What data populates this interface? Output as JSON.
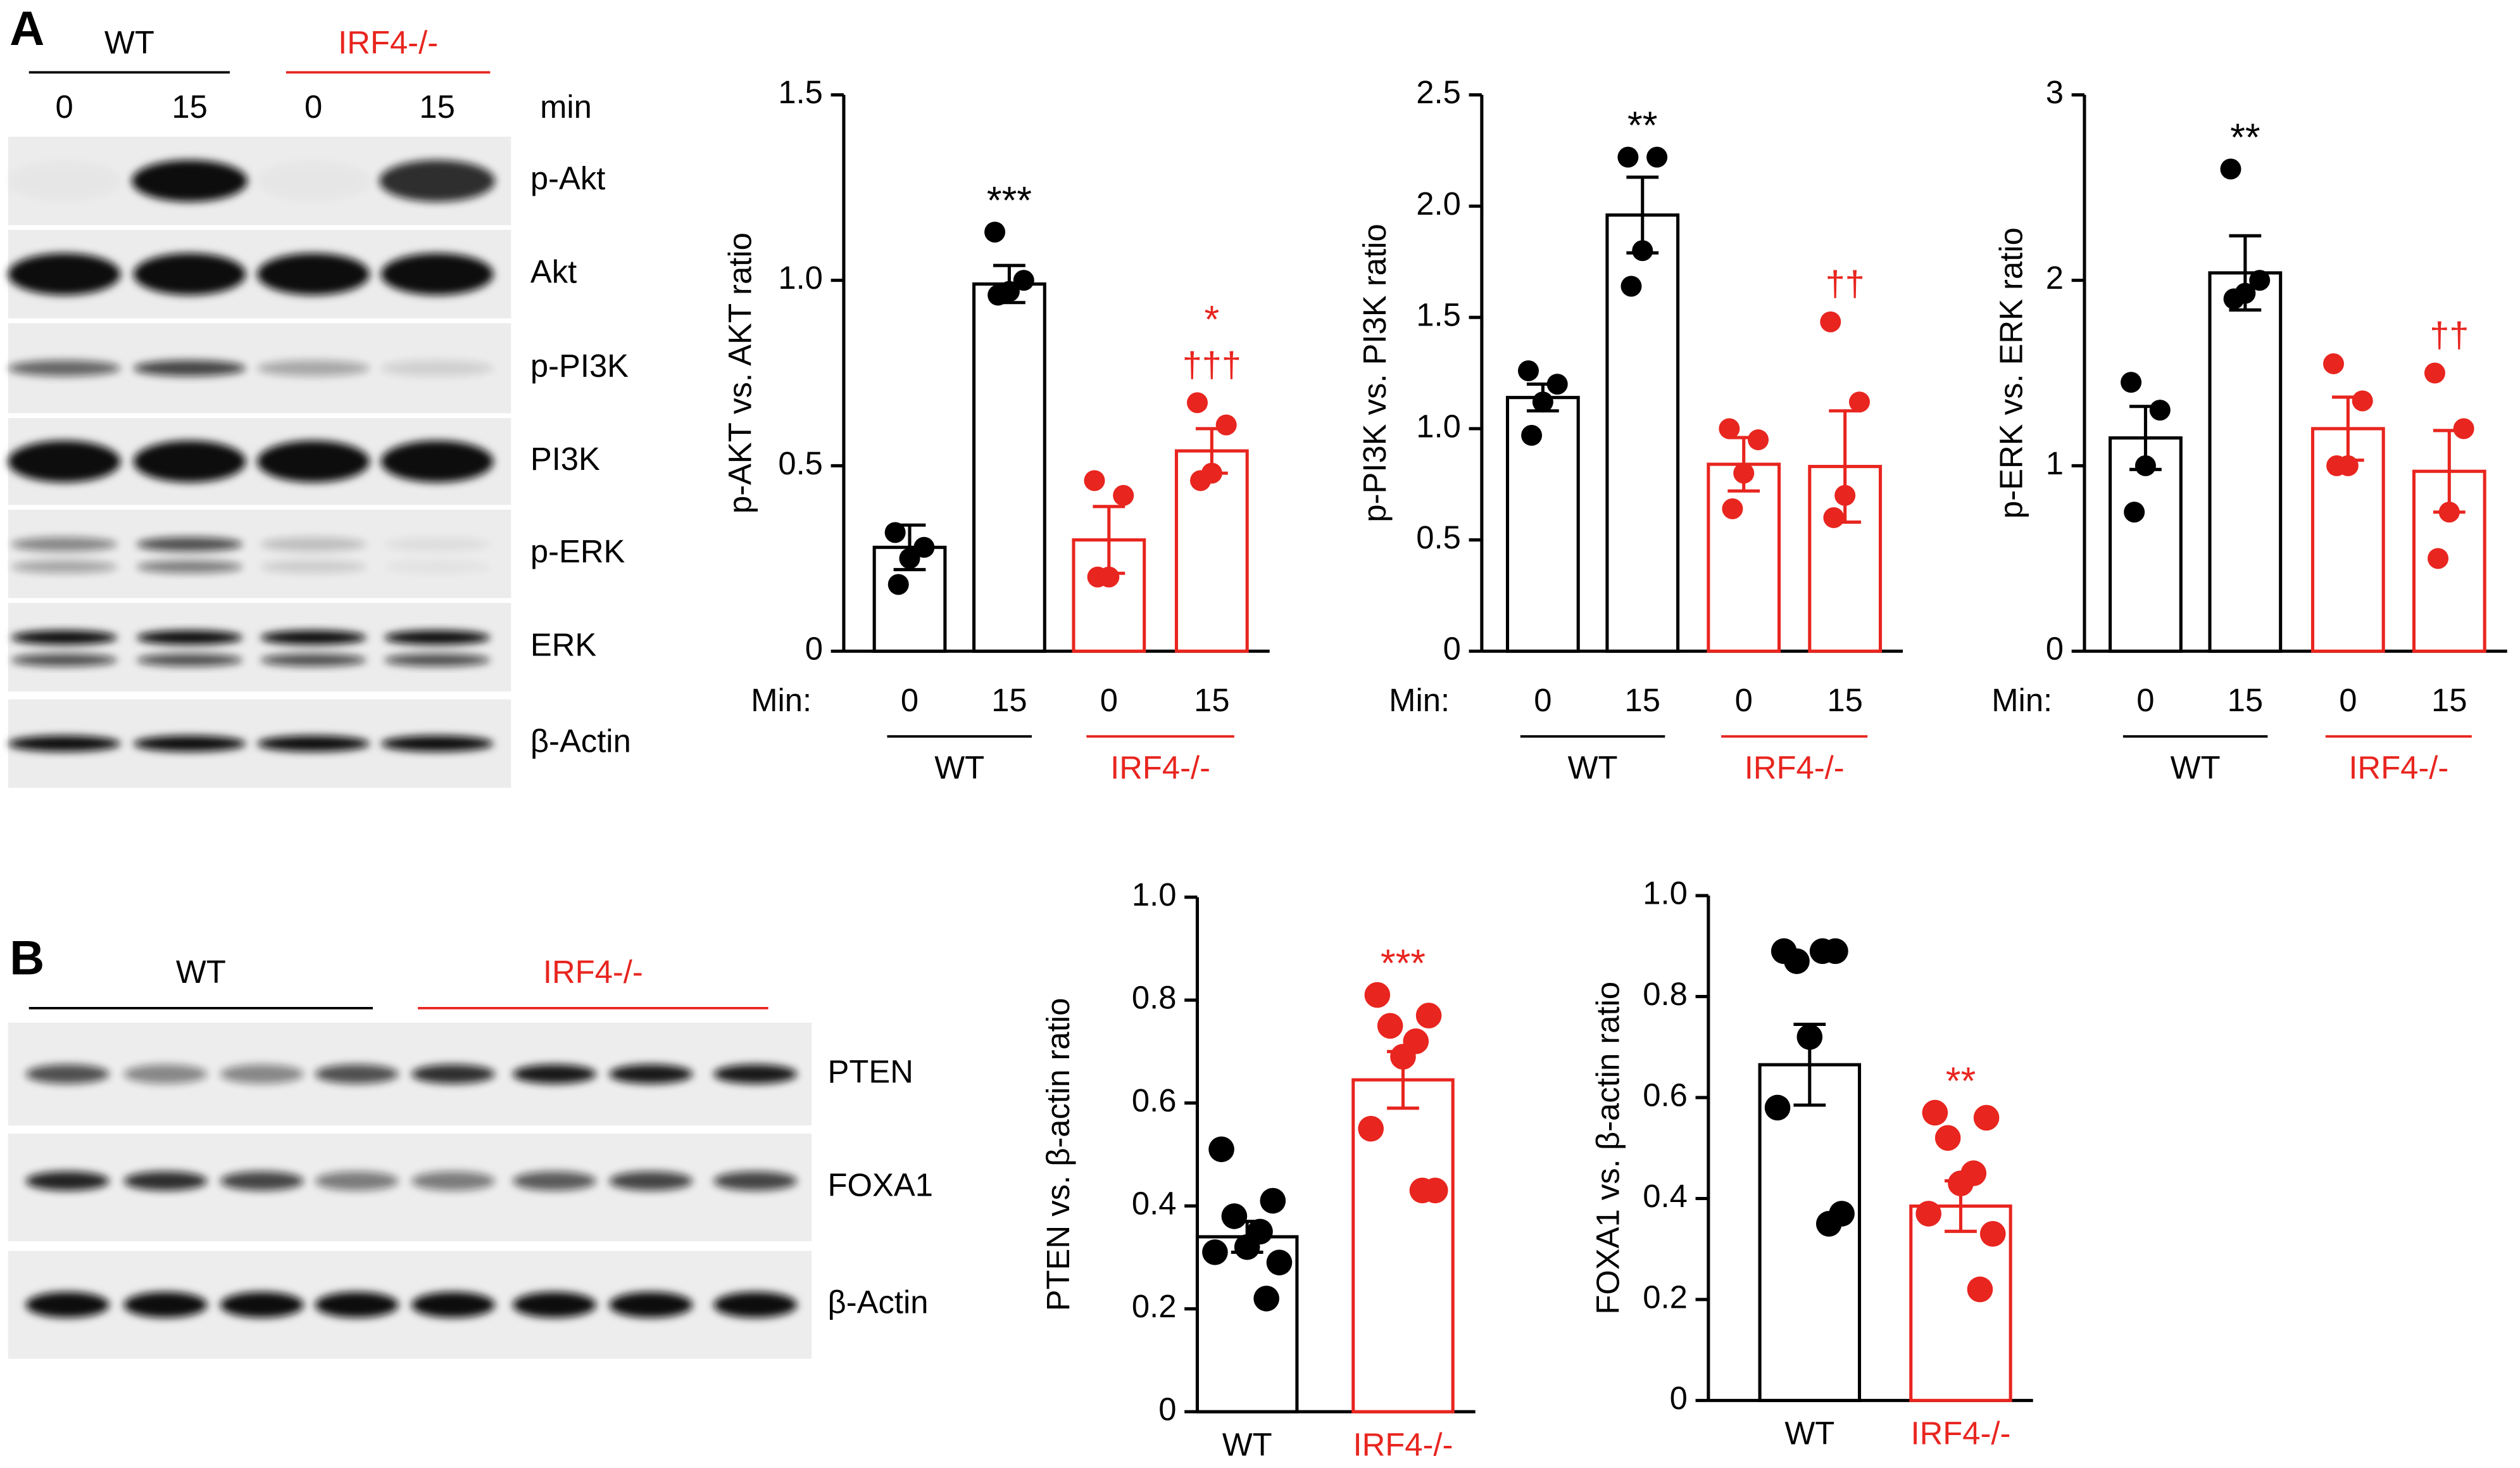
{
  "blots": {
    "panel_a": {
      "letter": "A",
      "groups": [
        "WT",
        "IRF4-/-"
      ],
      "unit": "min",
      "lanes": [
        "0",
        "15",
        "0",
        "15"
      ],
      "rows": [
        "p-Akt",
        "Akt",
        "p-PI3K",
        "PI3K",
        "p-ERK",
        "ERK",
        "β-Actin"
      ]
    },
    "panel_b": {
      "letter": "B",
      "groups": [
        "WT",
        "IRF4-/-"
      ],
      "rows": [
        "PTEN",
        "FOXA1",
        "β-Actin"
      ]
    }
  },
  "chart_data": [
    {
      "type": "bar",
      "y_label": "p-AKT vs. AKT ratio",
      "x_prefix": "Min:",
      "categories": [
        "0",
        "15",
        "0",
        "15"
      ],
      "colors": [
        "#000000",
        "#000000",
        "#e8251f",
        "#e8251f"
      ],
      "groups": [
        {
          "name": "WT",
          "color": "#000000"
        },
        {
          "name": "IRF4-/-",
          "color": "#e8251f"
        }
      ],
      "values": [
        0.28,
        0.99,
        0.3,
        0.54
      ],
      "errors": [
        0.06,
        0.05,
        0.09,
        0.06
      ],
      "points": [
        [
          0.32,
          0.28,
          0.25,
          0.18
        ],
        [
          1.13,
          1.0,
          0.97,
          0.96
        ],
        [
          0.46,
          0.42,
          0.2,
          0.2
        ],
        [
          0.67,
          0.61,
          0.48,
          0.46
        ]
      ],
      "significance": [
        null,
        "***",
        null,
        "*"
      ],
      "significance_vs_wt": [
        null,
        null,
        null,
        "†††"
      ],
      "ylim": [
        0,
        1.5
      ],
      "yticks": [
        0,
        0.5,
        {
          "value": 1,
          "label": "1.0"
        },
        1.5
      ]
    },
    {
      "type": "bar",
      "y_label": "p-PI3K vs. PI3K ratio",
      "x_prefix": "Min:",
      "categories": [
        "0",
        "15",
        "0",
        "15"
      ],
      "colors": [
        "#000000",
        "#000000",
        "#e8251f",
        "#e8251f"
      ],
      "groups": [
        {
          "name": "WT",
          "color": "#000000"
        },
        {
          "name": "IRF4-/-",
          "color": "#e8251f"
        }
      ],
      "values": [
        1.14,
        1.96,
        0.84,
        0.83
      ],
      "errors": [
        0.06,
        0.17,
        0.12,
        0.25
      ],
      "points": [
        [
          1.26,
          1.2,
          1.12,
          0.97
        ],
        [
          2.22,
          2.22,
          1.8,
          1.64
        ],
        [
          1.0,
          0.95,
          0.8,
          0.64
        ],
        [
          1.48,
          1.12,
          0.7,
          0.6
        ]
      ],
      "significance": [
        null,
        "**",
        null,
        null
      ],
      "significance_vs_wt": [
        null,
        null,
        null,
        "††"
      ],
      "ylim": [
        0,
        2.5
      ],
      "yticks": [
        0,
        0.5,
        {
          "value": 1,
          "label": "1.0"
        },
        1.5,
        {
          "value": 2,
          "label": "2.0"
        },
        2.5
      ]
    },
    {
      "type": "bar",
      "y_label": "p-ERK vs. ERK ratio",
      "x_prefix": "Min:",
      "categories": [
        "0",
        "15",
        "0",
        "15"
      ],
      "colors": [
        "#000000",
        "#000000",
        "#e8251f",
        "#e8251f"
      ],
      "groups": [
        {
          "name": "WT",
          "color": "#000000"
        },
        {
          "name": "IRF4-/-",
          "color": "#e8251f"
        }
      ],
      "values": [
        1.15,
        2.04,
        1.2,
        0.97
      ],
      "errors": [
        0.17,
        0.2,
        0.17,
        0.22
      ],
      "points": [
        [
          1.45,
          1.3,
          1.0,
          0.75
        ],
        [
          2.6,
          2.0,
          1.93,
          1.9
        ],
        [
          1.55,
          1.35,
          1.0,
          1.0
        ],
        [
          1.5,
          1.2,
          0.75,
          0.5
        ]
      ],
      "significance": [
        null,
        "**",
        null,
        null
      ],
      "significance_vs_wt": [
        null,
        null,
        null,
        "††"
      ],
      "ylim": [
        0,
        3
      ],
      "yticks": [
        0,
        1,
        2,
        3
      ]
    },
    {
      "type": "bar",
      "y_label": "PTEN vs. β-actin ratio",
      "categories": [
        "WT",
        "IRF4-/-"
      ],
      "colors": [
        "#000000",
        "#e8251f"
      ],
      "values": [
        0.34,
        0.645
      ],
      "errors": [
        0.03,
        0.055
      ],
      "points": [
        [
          0.51,
          0.41,
          0.38,
          0.35,
          0.32,
          0.31,
          0.29,
          0.22
        ],
        [
          0.81,
          0.77,
          0.75,
          0.72,
          0.69,
          0.55,
          0.43,
          0.43
        ]
      ],
      "significance": [
        null,
        "***"
      ],
      "ylim": [
        0,
        1
      ],
      "yticks": [
        0,
        0.2,
        0.4,
        0.6,
        0.8,
        {
          "value": 1,
          "label": "1.0"
        }
      ]
    },
    {
      "type": "bar",
      "y_label": "FOXA1 vs. β-actin ratio",
      "categories": [
        "WT",
        "IRF4-/-"
      ],
      "colors": [
        "#000000",
        "#e8251f"
      ],
      "values": [
        0.665,
        0.385
      ],
      "errors": [
        0.08,
        0.05
      ],
      "points": [
        [
          0.89,
          0.89,
          0.87,
          0.89,
          0.72,
          0.58,
          0.37,
          0.35
        ],
        [
          0.57,
          0.56,
          0.52,
          0.45,
          0.43,
          0.37,
          0.33,
          0.22
        ]
      ],
      "significance": [
        null,
        "**"
      ],
      "ylim": [
        0,
        1
      ],
      "yticks": [
        0,
        0.2,
        0.4,
        0.6,
        0.8,
        {
          "value": 1,
          "label": "1.0"
        }
      ]
    }
  ]
}
